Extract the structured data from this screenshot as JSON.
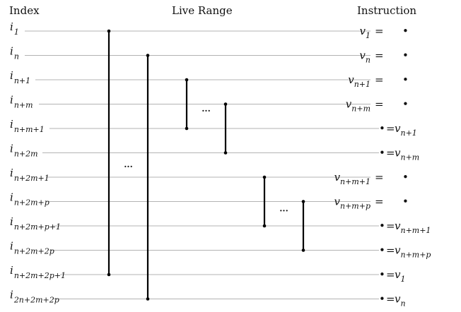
{
  "headers": {
    "index": "Index",
    "live_range": "Live Range",
    "instruction": "Instruction"
  },
  "rows": [
    {
      "index_sub": "1",
      "instr": {
        "form": "def",
        "v_sub": "1"
      }
    },
    {
      "index_sub": "n",
      "instr": {
        "form": "def",
        "v_sub": "n"
      }
    },
    {
      "index_sub": "n+1",
      "instr": {
        "form": "def",
        "v_sub": "n+1"
      }
    },
    {
      "index_sub": "n+m",
      "instr": {
        "form": "def",
        "v_sub": "n+m"
      }
    },
    {
      "index_sub": "n+m+1",
      "instr": {
        "form": "use",
        "v_sub": "n+1"
      }
    },
    {
      "index_sub": "n+2m",
      "instr": {
        "form": "use",
        "v_sub": "n+m"
      }
    },
    {
      "index_sub": "n+2m+1",
      "instr": {
        "form": "def",
        "v_sub": "n+m+1"
      }
    },
    {
      "index_sub": "n+2m+p",
      "instr": {
        "form": "def",
        "v_sub": "n+m+p"
      }
    },
    {
      "index_sub": "n+2m+p+1",
      "instr": {
        "form": "use",
        "v_sub": "n+m+1"
      }
    },
    {
      "index_sub": "n+2m+2p",
      "instr": {
        "form": "use",
        "v_sub": "n+m+p"
      }
    },
    {
      "index_sub": "n+2m+2p+1",
      "instr": {
        "form": "use",
        "v_sub": "1"
      }
    },
    {
      "index_sub": "2n+2m+2p",
      "instr": {
        "form": "use",
        "v_sub": "n"
      }
    }
  ],
  "symbols": {
    "index_letter": "i",
    "var_letter": "v",
    "equals": "=",
    "bullet": "•",
    "ellipsis": "..."
  },
  "live_ranges": [
    {
      "name": "v_1",
      "start_row": 0,
      "end_row": 10
    },
    {
      "name": "v_n",
      "start_row": 1,
      "end_row": 11
    },
    {
      "name": "v_n+1",
      "start_row": 2,
      "end_row": 4
    },
    {
      "name": "v_n+m",
      "start_row": 3,
      "end_row": 5
    },
    {
      "name": "v_n+m+1",
      "start_row": 6,
      "end_row": 8
    },
    {
      "name": "v_n+m+p",
      "start_row": 7,
      "end_row": 9
    }
  ],
  "ellipses": [
    {
      "between_ranges": [
        2,
        3
      ],
      "row": 3.3
    },
    {
      "between_ranges": [
        0,
        1
      ],
      "row": 5.6
    },
    {
      "between_ranges": [
        4,
        5
      ],
      "row": 7.4
    }
  ]
}
